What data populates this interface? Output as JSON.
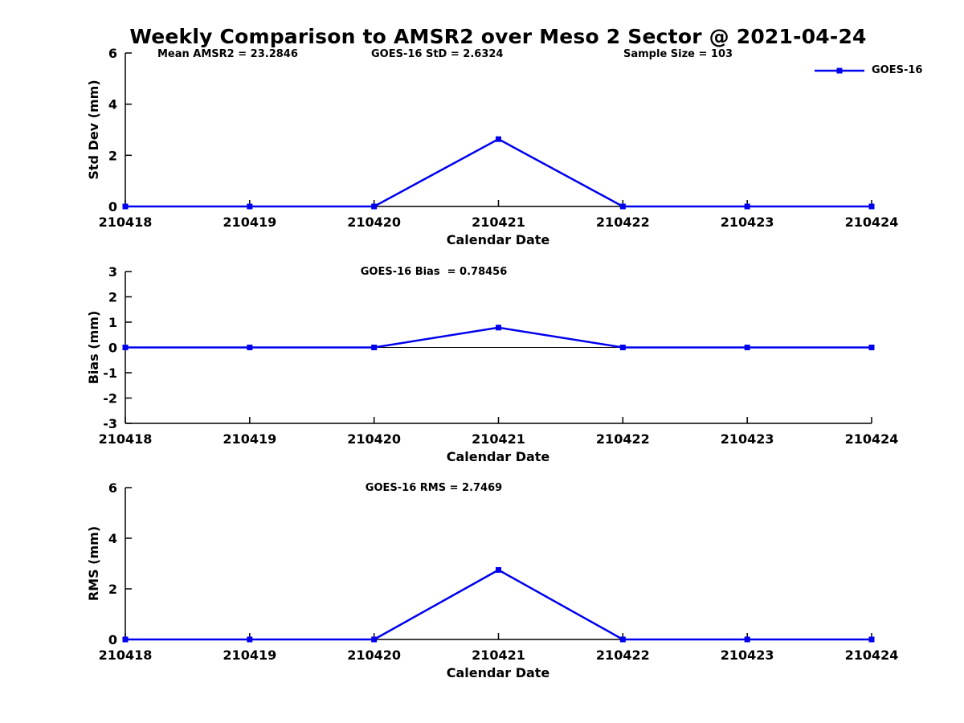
{
  "header": {
    "title": "Weekly Comparison to AMSR2 over Meso 2 Sector @ 2021-04-24",
    "stats": [
      {
        "label": "Mean AMSR2 = 23.2846"
      },
      {
        "label": "GOES-16 StD = 2.6324"
      },
      {
        "label": "Sample Size = 103"
      }
    ]
  },
  "legend": {
    "label": "GOES-16",
    "color": "#0000EE"
  },
  "colors": {
    "series": "#0000EE",
    "axis": "#000000"
  },
  "chart_data": [
    {
      "type": "line",
      "name": "std-dev-chart",
      "categories": [
        "210418",
        "210419",
        "210420",
        "210421",
        "210422",
        "210423",
        "210424"
      ],
      "series": [
        {
          "name": "GOES-16",
          "values": [
            0,
            0,
            0,
            2.6324,
            0,
            0,
            0
          ]
        }
      ],
      "annotation": "",
      "xlabel": "Calendar Date",
      "ylabel": "Std Dev (mm)",
      "ylim": [
        0,
        6
      ],
      "yticks": [
        0,
        2,
        4,
        6
      ],
      "grid": false,
      "legend_position": "top-right",
      "marker": "square"
    },
    {
      "type": "line",
      "name": "bias-chart",
      "categories": [
        "210418",
        "210419",
        "210420",
        "210421",
        "210422",
        "210423",
        "210424"
      ],
      "series": [
        {
          "name": "GOES-16",
          "values": [
            0,
            0,
            0,
            0.78456,
            0,
            0,
            0
          ]
        }
      ],
      "annotation": "GOES-16 Bias  = 0.78456",
      "xlabel": "Calendar Date",
      "ylabel": "Bias (mm)",
      "ylim": [
        -3,
        3
      ],
      "yticks": [
        -3,
        -2,
        -1,
        0,
        1,
        2,
        3
      ],
      "zero_line": true,
      "grid": false,
      "marker": "square"
    },
    {
      "type": "line",
      "name": "rms-chart",
      "categories": [
        "210418",
        "210419",
        "210420",
        "210421",
        "210422",
        "210423",
        "210424"
      ],
      "series": [
        {
          "name": "GOES-16",
          "values": [
            0,
            0,
            0,
            2.7469,
            0,
            0,
            0
          ]
        }
      ],
      "annotation": "GOES-16 RMS = 2.7469",
      "xlabel": "Calendar Date",
      "ylabel": "RMS (mm)",
      "ylim": [
        0,
        6
      ],
      "yticks": [
        0,
        2,
        4,
        6
      ],
      "grid": false,
      "marker": "square"
    }
  ]
}
